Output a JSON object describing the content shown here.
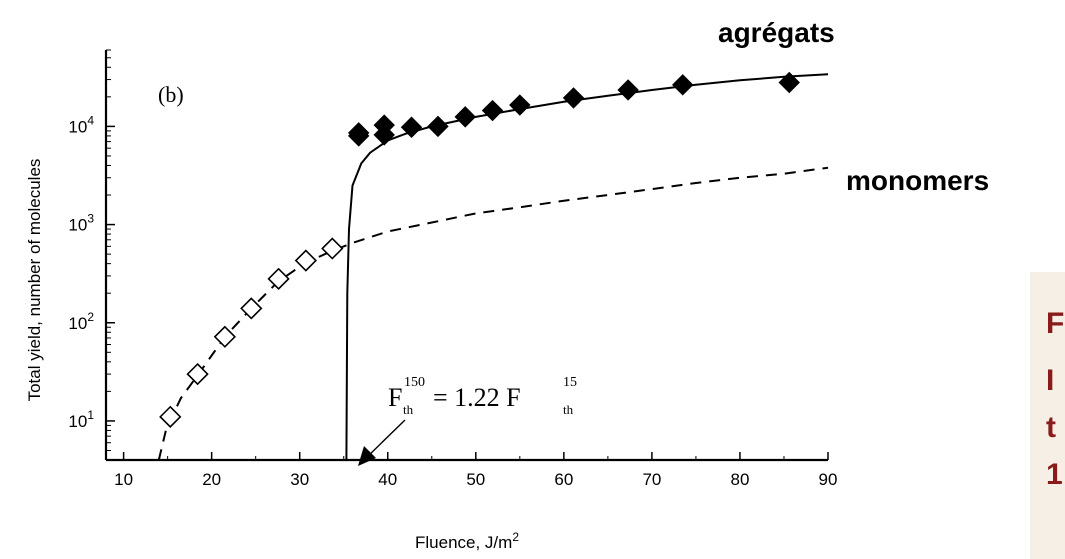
{
  "chart_data": {
    "type": "scatter",
    "panel_label": "(b)",
    "xlabel": "Fluence, J/m",
    "xlabel_sup": "2",
    "ylabel": "Total yield, number of molecules",
    "xlim": [
      8,
      90
    ],
    "ylim": [
      4,
      60000
    ],
    "yscale": "log",
    "grid": false,
    "xticks": [
      10,
      20,
      30,
      40,
      50,
      60,
      70,
      80,
      90
    ],
    "yticks": [
      {
        "value": 10,
        "base": "10",
        "exp": "1"
      },
      {
        "value": 100,
        "base": "10",
        "exp": "2"
      },
      {
        "value": 1000,
        "base": "10",
        "exp": "3"
      },
      {
        "value": 10000,
        "base": "10",
        "exp": "4"
      }
    ],
    "series": [
      {
        "name": "monomers",
        "marker": "open-diamond",
        "points": [
          [
            15.3,
            11
          ],
          [
            18.4,
            30
          ],
          [
            21.5,
            72
          ],
          [
            24.5,
            140
          ],
          [
            27.6,
            280
          ],
          [
            30.7,
            430
          ],
          [
            33.7,
            570
          ]
        ]
      },
      {
        "name": "agrégats",
        "marker": "filled-diamond",
        "points": [
          [
            36.7,
            8000
          ],
          [
            36.7,
            8600
          ],
          [
            39.6,
            8200
          ],
          [
            39.6,
            10300
          ],
          [
            42.7,
            9800
          ],
          [
            45.7,
            10000
          ],
          [
            48.8,
            12500
          ],
          [
            51.9,
            14500
          ],
          [
            55.0,
            16500
          ],
          [
            61.1,
            19500
          ],
          [
            67.3,
            23500
          ],
          [
            73.5,
            26500
          ],
          [
            85.6,
            28000
          ]
        ]
      }
    ],
    "fit_curves": [
      {
        "style": "dashed",
        "points": [
          [
            14.0,
            4
          ],
          [
            14.8,
            8
          ],
          [
            15.5,
            11
          ],
          [
            16.5,
            17
          ],
          [
            18.5,
            30
          ],
          [
            21.5,
            72
          ],
          [
            24.5,
            140
          ],
          [
            27.5,
            260
          ],
          [
            30.5,
            400
          ],
          [
            33.5,
            530
          ],
          [
            36,
            650
          ],
          [
            40,
            850
          ],
          [
            45,
            1050
          ],
          [
            50,
            1300
          ],
          [
            55,
            1500
          ],
          [
            60,
            1750
          ],
          [
            65,
            2000
          ],
          [
            70,
            2300
          ],
          [
            75,
            2650
          ],
          [
            80,
            3000
          ],
          [
            85,
            3300
          ],
          [
            90,
            3800
          ]
        ]
      },
      {
        "style": "solid",
        "points": [
          [
            35.3,
            4
          ],
          [
            35.4,
            200
          ],
          [
            35.6,
            900
          ],
          [
            36.0,
            2500
          ],
          [
            37.0,
            4200
          ],
          [
            38.0,
            5400
          ],
          [
            40.0,
            7200
          ],
          [
            42.0,
            8400
          ],
          [
            45.0,
            10000
          ],
          [
            50.0,
            12500
          ],
          [
            55.0,
            15000
          ],
          [
            60.0,
            17800
          ],
          [
            65.0,
            20500
          ],
          [
            70.0,
            23500
          ],
          [
            75.0,
            26500
          ],
          [
            80.0,
            29500
          ],
          [
            85.0,
            32000
          ],
          [
            90.0,
            34000
          ]
        ]
      }
    ],
    "annotations": {
      "threshold": {
        "F_left": "F",
        "sup_left": "150",
        "sub_left": "th",
        "equals_text": "= 1.22 F",
        "sup_right": "15",
        "sub_right": "th"
      },
      "label_top": "agrégats",
      "label_right": "monomers"
    },
    "side_box": {
      "lines": [
        "F",
        "I",
        "t",
        "1"
      ],
      "background": "#f5efe6",
      "text_color": "#8b1a1a"
    }
  }
}
